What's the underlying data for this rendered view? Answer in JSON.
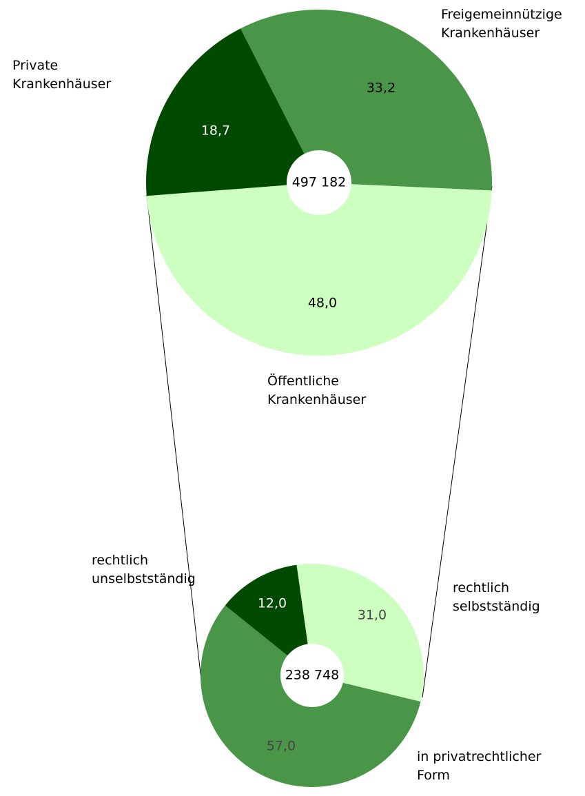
{
  "chart_data": [
    {
      "type": "donut",
      "center_label": "497 182",
      "categories": [
        "Freigemeinnützige Krankenhäuser",
        "Öffentliche Krankenhäuser",
        "Private Krankenhäuser"
      ],
      "values": [
        33.2,
        48.0,
        18.7
      ],
      "value_labels": [
        "33,2",
        "48,0",
        "18,7"
      ],
      "colors": [
        "#4a9648",
        "#ccffc0",
        "#004a00"
      ]
    },
    {
      "type": "donut",
      "center_label": "238 748",
      "categories": [
        "rechtlich selbstständig",
        "in privatrechtlicher Form",
        "rechtlich unselbstständig"
      ],
      "values": [
        31.0,
        57.0,
        12.0
      ],
      "value_labels": [
        "31,0",
        "57,0",
        "12,0"
      ],
      "colors": [
        "#ccffc0",
        "#4a9648",
        "#004a00"
      ]
    }
  ]
}
